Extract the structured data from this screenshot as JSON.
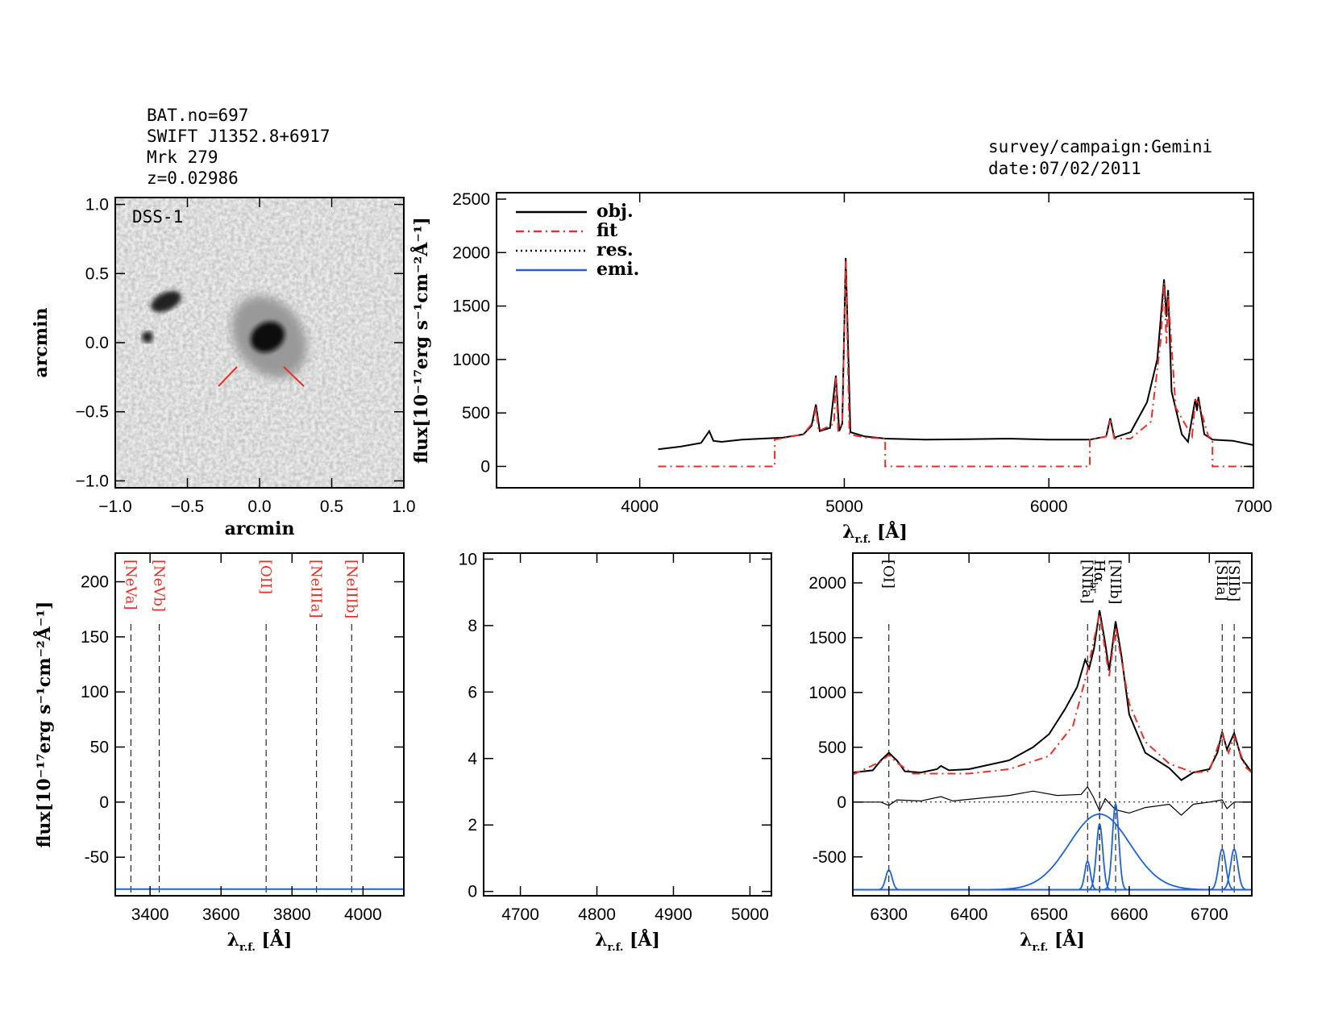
{
  "header": {
    "object_lines": [
      "BAT.no=697",
      "SWIFT J1352.8+6917",
      "Mrk 279",
      "z=0.02986"
    ],
    "survey": "survey/campaign:Gemini",
    "date": "date:07/02/2011"
  },
  "chart_data": [
    {
      "type": "image",
      "label": "DSS-1",
      "xlabel": "arcmin",
      "ylabel": "arcmin",
      "xlim": [
        -1.0,
        1.0
      ],
      "ylim": [
        -1.05,
        1.05
      ],
      "xticks": [
        {
          "value": -1.0,
          "label": "−1.0"
        },
        {
          "value": -0.5,
          "label": "−0.5"
        },
        {
          "value": 0,
          "label": "0.0"
        },
        0.5,
        {
          "value": 1.0,
          "label": "1.0"
        }
      ],
      "yticks": [
        {
          "value": -1.0,
          "label": "−1.0"
        },
        {
          "value": -0.5,
          "label": "−0.5"
        },
        {
          "value": 0,
          "label": "0.0"
        },
        0.5,
        {
          "value": 1.0,
          "label": "1.0"
        }
      ]
    },
    {
      "type": "line",
      "ylabel": "flux[10⁻¹⁷erg s⁻¹cm⁻²Å⁻¹]",
      "xlabel": {
        "symbol": "λ",
        "sub": "r.f.",
        "unit": " [Å]"
      },
      "xlim": [
        3300,
        7000
      ],
      "ylim": [
        -200,
        2560
      ],
      "xticks": [
        4000,
        5000,
        6000,
        7000
      ],
      "yticks": [
        0,
        500,
        1000,
        1500,
        2000,
        2500
      ],
      "legend": {
        "position": "upper left",
        "entries": [
          {
            "name": "obj.",
            "color": "#000000",
            "dash": "solid"
          },
          {
            "name": "fit",
            "color": "#e8302a",
            "dash": "dashdot"
          },
          {
            "name": "res.",
            "color": "#000000",
            "dash": "dotted"
          },
          {
            "name": "emi.",
            "color": "#1f62d6",
            "dash": "solid"
          }
        ]
      },
      "series": [
        {
          "color": "#000000",
          "dash": "solid",
          "x": [
            4090,
            4200,
            4300,
            4340,
            4360,
            4400,
            4500,
            4600,
            4700,
            4800,
            4840,
            4861,
            4880,
            4930,
            4959,
            4975,
            4990,
            5007,
            5030,
            5100,
            5200,
            5400,
            5600,
            5800,
            6000,
            6200,
            6280,
            6300,
            6320,
            6400,
            6480,
            6530,
            6563,
            6575,
            6583,
            6600,
            6650,
            6680,
            6716,
            6724,
            6731,
            6760,
            6800,
            6900,
            7000
          ],
          "values": [
            160,
            185,
            220,
            330,
            240,
            230,
            250,
            260,
            270,
            300,
            380,
            580,
            330,
            360,
            850,
            330,
            400,
            1950,
            320,
            280,
            260,
            250,
            255,
            260,
            250,
            250,
            280,
            450,
            270,
            320,
            600,
            1000,
            1750,
            1400,
            1650,
            700,
            300,
            230,
            630,
            520,
            650,
            300,
            250,
            240,
            200
          ]
        },
        {
          "color": "#e8302a",
          "dash": "dashdot",
          "x": [
            4090,
            4660,
            4660,
            4800,
            4850,
            4861,
            4875,
            4950,
            4959,
            4970,
            4990,
            5007,
            5025,
            5100,
            5200,
            5200,
            6200,
            6200,
            6280,
            6300,
            6320,
            6400,
            6500,
            6548,
            6563,
            6575,
            6583,
            6620,
            6700,
            6716,
            6731,
            6780,
            6800,
            6800,
            7000
          ],
          "values": [
            0,
            0,
            250,
            300,
            420,
            560,
            330,
            400,
            830,
            340,
            400,
            1920,
            300,
            270,
            260,
            0,
            0,
            250,
            280,
            430,
            260,
            260,
            420,
            1200,
            1720,
            1150,
            1600,
            550,
            280,
            620,
            600,
            280,
            260,
            0,
            0
          ]
        }
      ]
    },
    {
      "type": "line",
      "ylabel": "flux[10⁻¹⁷erg s⁻¹cm⁻²Å⁻¹]",
      "xlabel": {
        "symbol": "λ",
        "sub": "r.f.",
        "unit": " [Å]"
      },
      "xlim": [
        3302,
        4115
      ],
      "ylim": [
        -85,
        226
      ],
      "xticks": [
        3400,
        3600,
        3800,
        4000
      ],
      "yticks": [
        -50,
        0,
        50,
        100,
        150,
        200
      ],
      "line_label_color": "#e8302a",
      "lines": [
        {
          "label": "[NeVa]",
          "x": 3346
        },
        {
          "label": "[NeVb]",
          "x": 3426
        },
        {
          "label": "[OII]",
          "x": 3727
        },
        {
          "label": "[NeIIIa]",
          "x": 3869
        },
        {
          "label": "[NeIIIb]",
          "x": 3968
        }
      ],
      "series": [
        {
          "color": "#1f62d6",
          "dash": "solid",
          "x": [
            3302,
            4115
          ],
          "values": [
            -79,
            -79
          ]
        }
      ]
    },
    {
      "type": "line",
      "xlabel": {
        "symbol": "λ",
        "sub": "r.f.",
        "unit": " [Å]"
      },
      "xlim": [
        4652,
        5028
      ],
      "ylim": [
        -0.13,
        10.18
      ],
      "xticks": [
        4700,
        4800,
        4900,
        5000
      ],
      "yticks": [
        0,
        2,
        4,
        6,
        8,
        10
      ]
    },
    {
      "type": "line",
      "xlabel": {
        "symbol": "λ",
        "sub": "r.f.",
        "unit": " [Å]"
      },
      "xlim": [
        6255,
        6753
      ],
      "ylim": [
        -855,
        2272
      ],
      "xticks": [
        6300,
        6400,
        6500,
        6600,
        6700
      ],
      "yticks": [
        -500,
        0,
        500,
        1000,
        1500,
        2000
      ],
      "line_label_color": "#000000",
      "lines": [
        {
          "label": "[OI]",
          "x": 6300
        },
        {
          "label": "[NIIa]",
          "x": 6548
        },
        {
          "label": "Hα",
          "x": 6563
        },
        {
          "label": "Hα",
          "sub": "br",
          "x": 6563
        },
        {
          "label": "[NIIb]",
          "x": 6583
        },
        {
          "label": "[SIIa]",
          "x": 6716
        },
        {
          "label": "[SIIb]",
          "x": 6731
        }
      ],
      "series": [
        {
          "color": "#000000",
          "dash": "solid",
          "x": [
            6255,
            6280,
            6290,
            6300,
            6310,
            6320,
            6340,
            6360,
            6365,
            6375,
            6400,
            6450,
            6480,
            6500,
            6520,
            6535,
            6545,
            6550,
            6556,
            6563,
            6570,
            6575,
            6583,
            6590,
            6600,
            6620,
            6650,
            6665,
            6680,
            6700,
            6710,
            6716,
            6722,
            6731,
            6740,
            6753
          ],
          "values": [
            270,
            290,
            380,
            450,
            380,
            280,
            270,
            300,
            330,
            290,
            300,
            380,
            500,
            620,
            850,
            1050,
            1300,
            1220,
            1400,
            1750,
            1450,
            1200,
            1650,
            1350,
            800,
            450,
            310,
            200,
            270,
            300,
            450,
            640,
            480,
            630,
            400,
            270
          ]
        },
        {
          "color": "#e8302a",
          "dash": "dashdot",
          "x": [
            6255,
            6290,
            6300,
            6310,
            6330,
            6400,
            6450,
            6500,
            6530,
            6548,
            6563,
            6575,
            6583,
            6600,
            6620,
            6650,
            6680,
            6700,
            6716,
            6724,
            6731,
            6745,
            6753
          ],
          "values": [
            250,
            370,
            430,
            360,
            260,
            260,
            300,
            420,
            700,
            1200,
            1720,
            1150,
            1600,
            900,
            550,
            350,
            270,
            280,
            620,
            450,
            600,
            320,
            270
          ]
        },
        {
          "color": "#000000",
          "dash": "thin",
          "x": [
            6255,
            6290,
            6300,
            6310,
            6340,
            6365,
            6380,
            6420,
            6450,
            6480,
            6510,
            6540,
            6548,
            6555,
            6563,
            6570,
            6583,
            6600,
            6620,
            6650,
            6665,
            6680,
            6700,
            6716,
            6722,
            6731,
            6753
          ],
          "values": [
            0,
            0,
            -30,
            20,
            10,
            50,
            10,
            40,
            60,
            100,
            60,
            70,
            140,
            50,
            -80,
            30,
            -70,
            -100,
            -50,
            -20,
            -120,
            -20,
            0,
            20,
            -60,
            0,
            0
          ]
        }
      ],
      "emission": {
        "color": "#1f62d6",
        "offset": -800,
        "components": [
          {
            "center": 6300,
            "amplitude": 180,
            "sigma": 4
          },
          {
            "center": 6548,
            "amplitude": 260,
            "sigma": 3.5
          },
          {
            "center": 6563,
            "amplitude": 600,
            "sigma": 4
          },
          {
            "center": 6563,
            "amplitude": 690,
            "sigma": 38
          },
          {
            "center": 6583,
            "amplitude": 780,
            "sigma": 4
          },
          {
            "center": 6716,
            "amplitude": 370,
            "sigma": 4.5
          },
          {
            "center": 6731,
            "amplitude": 370,
            "sigma": 4.5
          }
        ]
      }
    }
  ]
}
